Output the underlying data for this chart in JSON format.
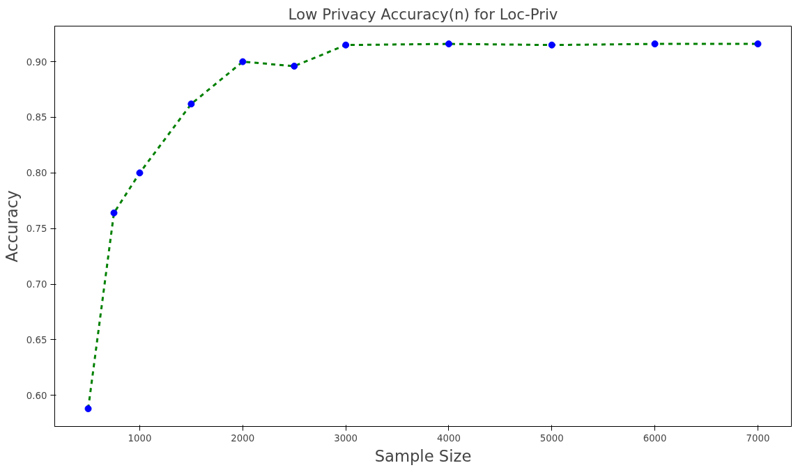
{
  "chart_data": {
    "type": "line",
    "title": "Low Privacy Accuracy(n) for Loc-Priv",
    "xlabel": "Sample Size",
    "ylabel": "Accuracy",
    "x": [
      500,
      750,
      1000,
      1500,
      2000,
      2500,
      3000,
      4000,
      5000,
      6000,
      7000
    ],
    "series": [
      {
        "color": "#008000",
        "colors": [
          "#0000ff",
          "#0000ff",
          "#0000ff",
          "#0000ff",
          "#0000ff",
          "#0000ff",
          "#0000ff",
          "#0000ff",
          "#0000ff",
          "#0000ff",
          "#0000ff"
        ],
        "values": [
          0.588,
          0.764,
          0.8,
          0.862,
          0.9,
          0.896,
          0.915,
          0.916,
          0.915,
          0.916,
          0.916
        ]
      }
    ],
    "xlim": [
      175,
      7325
    ],
    "ylim": [
      0.572,
      0.932
    ],
    "xticks": [
      1000,
      2000,
      3000,
      4000,
      5000,
      6000,
      7000
    ],
    "yticks": [
      {
        "value": 0.6,
        "label": "0.60"
      },
      0.65,
      {
        "value": 0.7,
        "label": "0.70"
      },
      0.75,
      {
        "value": 0.8,
        "label": "0.80"
      },
      0.85,
      {
        "value": 0.9,
        "label": "0.90"
      }
    ],
    "marker": "circle",
    "line_style": "dashed",
    "grid": false
  }
}
